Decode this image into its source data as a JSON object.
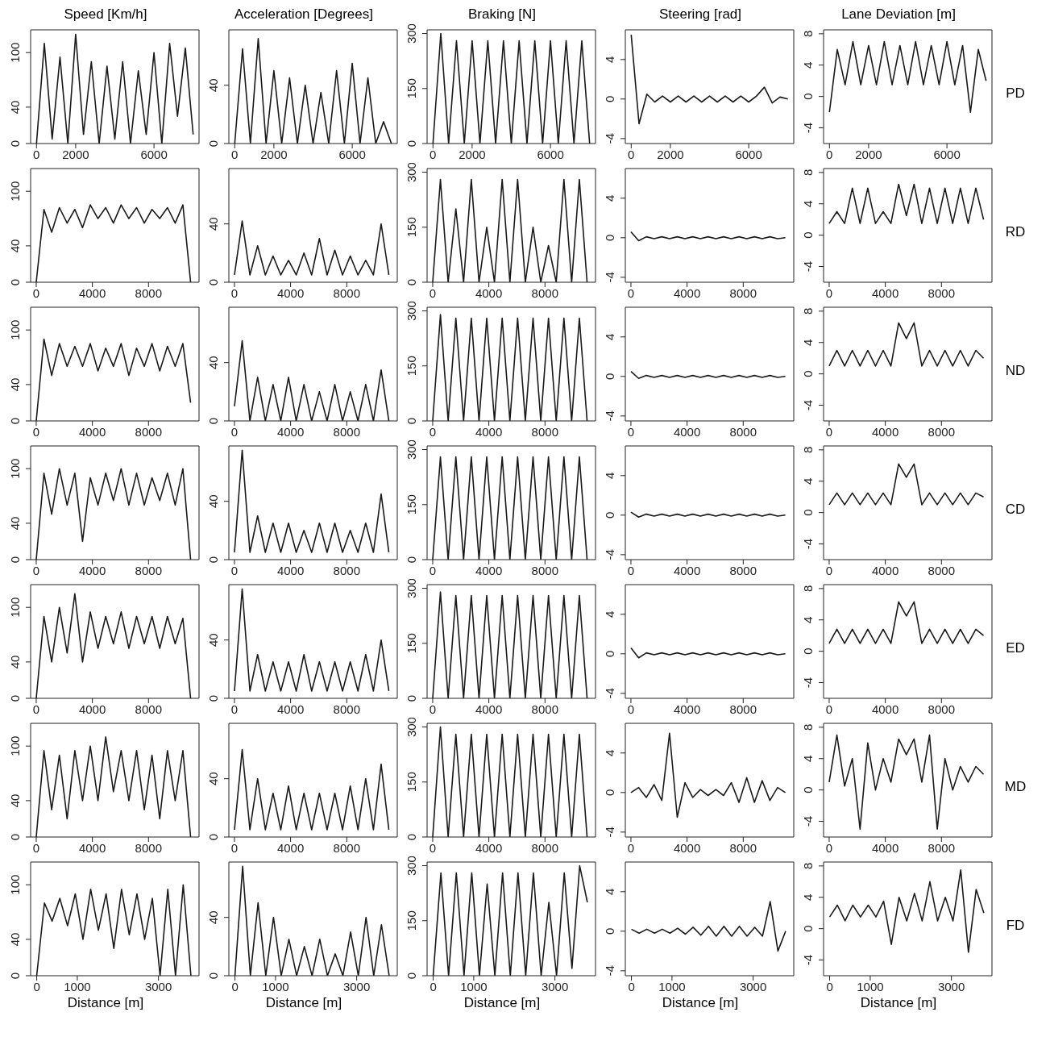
{
  "chart_data": [
    {
      "type": "line",
      "title": "Speed [Km/h]",
      "x": [
        0,
        400,
        800,
        1200,
        1600,
        2000,
        2400,
        2800,
        3200,
        3600,
        4000,
        4400,
        4800,
        5200,
        5600,
        6000,
        6400,
        6800,
        7200,
        7600,
        8000
      ],
      "xlim": [
        -300,
        8300
      ],
      "xticks": [
        0,
        2000,
        6000
      ],
      "ylim": [
        0,
        125
      ],
      "yticks": [
        0,
        40,
        100
      ],
      "series": [
        {
          "color": "#1a1a1a",
          "values": [
            0,
            110,
            5,
            95,
            0,
            120,
            10,
            90,
            0,
            85,
            5,
            90,
            0,
            80,
            10,
            100,
            0,
            110,
            30,
            105,
            10
          ]
        }
      ]
    },
    {
      "type": "line",
      "title": "Acceleration [Degrees]",
      "x": [
        0,
        400,
        800,
        1200,
        1600,
        2000,
        2400,
        2800,
        3200,
        3600,
        4000,
        4400,
        4800,
        5200,
        5600,
        6000,
        6400,
        6800,
        7200,
        7600,
        8000
      ],
      "xlim": [
        -300,
        8300
      ],
      "xticks": [
        0,
        2000,
        6000
      ],
      "ylim": [
        0,
        78
      ],
      "yticks": [
        0,
        40
      ],
      "series": [
        {
          "color": "#1a1a1a",
          "values": [
            0,
            65,
            0,
            72,
            0,
            50,
            0,
            45,
            0,
            40,
            0,
            35,
            0,
            50,
            0,
            55,
            0,
            45,
            0,
            15,
            0
          ]
        }
      ]
    },
    {
      "type": "line",
      "title": "Braking [N]",
      "x": [
        0,
        400,
        800,
        1200,
        1600,
        2000,
        2400,
        2800,
        3200,
        3600,
        4000,
        4400,
        4800,
        5200,
        5600,
        6000,
        6400,
        6800,
        7200,
        7600,
        8000
      ],
      "xlim": [
        -300,
        8300
      ],
      "xticks": [
        0,
        2000,
        6000
      ],
      "ylim": [
        0,
        310
      ],
      "yticks": [
        0,
        150,
        300
      ],
      "series": [
        {
          "color": "#1a1a1a",
          "values": [
            0,
            300,
            0,
            280,
            0,
            280,
            0,
            280,
            0,
            280,
            0,
            280,
            0,
            280,
            0,
            280,
            0,
            280,
            0,
            280,
            0
          ]
        }
      ]
    },
    {
      "type": "line",
      "title": "Steering [rad]",
      "x": [
        0,
        400,
        800,
        1200,
        1600,
        2000,
        2400,
        2800,
        3200,
        3600,
        4000,
        4400,
        4800,
        5200,
        5600,
        6000,
        6400,
        6800,
        7200,
        7600,
        8000
      ],
      "xlim": [
        -300,
        8300
      ],
      "xticks": [
        0,
        2000,
        6000
      ],
      "ylim": [
        -4.5,
        7
      ],
      "yticks": [
        -4,
        0,
        4
      ],
      "series": [
        {
          "color": "#1a1a1a",
          "values": [
            6.5,
            -2.5,
            0.5,
            -0.3,
            0.3,
            -0.3,
            0.3,
            -0.3,
            0.3,
            -0.3,
            0.3,
            -0.3,
            0.3,
            -0.3,
            0.3,
            -0.3,
            0.3,
            1.2,
            -0.4,
            0.2,
            0
          ]
        }
      ]
    },
    {
      "type": "line",
      "title": "Lane Deviation [m]",
      "y2label": "PD",
      "x": [
        0,
        400,
        800,
        1200,
        1600,
        2000,
        2400,
        2800,
        3200,
        3600,
        4000,
        4400,
        4800,
        5200,
        5600,
        6000,
        6400,
        6800,
        7200,
        7600,
        8000
      ],
      "xlim": [
        -300,
        8300
      ],
      "xticks": [
        0,
        2000,
        6000
      ],
      "ylim": [
        -6,
        8.5
      ],
      "yticks": [
        -4,
        0,
        4,
        8
      ],
      "series": [
        {
          "color": "#1a1a1a",
          "values": [
            -2,
            6,
            1.5,
            7,
            1.5,
            6.5,
            1.5,
            7,
            1.5,
            6.5,
            1.5,
            7,
            1.5,
            6.5,
            1.5,
            7,
            1.5,
            6.5,
            -2,
            6,
            2
          ]
        }
      ]
    },
    {
      "type": "line",
      "x": [
        0,
        550,
        1100,
        1650,
        2200,
        2750,
        3300,
        3850,
        4400,
        4950,
        5500,
        6050,
        6600,
        7150,
        7700,
        8250,
        8800,
        9350,
        9900,
        10450,
        11000
      ],
      "xlim": [
        -400,
        11600
      ],
      "xticks": [
        0,
        4000,
        8000
      ],
      "ylim": [
        0,
        125
      ],
      "yticks": [
        0,
        40,
        100
      ],
      "series": [
        {
          "color": "#1a1a1a",
          "values": [
            0,
            80,
            55,
            82,
            65,
            80,
            60,
            85,
            70,
            82,
            65,
            85,
            70,
            82,
            65,
            80,
            70,
            82,
            65,
            85,
            0
          ]
        }
      ]
    },
    {
      "type": "line",
      "x": [
        0,
        550,
        1100,
        1650,
        2200,
        2750,
        3300,
        3850,
        4400,
        4950,
        5500,
        6050,
        6600,
        7150,
        7700,
        8250,
        8800,
        9350,
        9900,
        10450,
        11000
      ],
      "xlim": [
        -400,
        11600
      ],
      "xticks": [
        0,
        4000,
        8000
      ],
      "ylim": [
        0,
        78
      ],
      "yticks": [
        0,
        40
      ],
      "series": [
        {
          "color": "#1a1a1a",
          "values": [
            5,
            42,
            5,
            25,
            5,
            18,
            5,
            15,
            5,
            20,
            5,
            30,
            5,
            22,
            5,
            18,
            5,
            15,
            5,
            40,
            5
          ]
        }
      ]
    },
    {
      "type": "line",
      "x": [
        0,
        550,
        1100,
        1650,
        2200,
        2750,
        3300,
        3850,
        4400,
        4950,
        5500,
        6050,
        6600,
        7150,
        7700,
        8250,
        8800,
        9350,
        9900,
        10450,
        11000
      ],
      "xlim": [
        -400,
        11600
      ],
      "xticks": [
        0,
        4000,
        8000
      ],
      "ylim": [
        0,
        310
      ],
      "yticks": [
        0,
        150,
        300
      ],
      "series": [
        {
          "color": "#1a1a1a",
          "values": [
            0,
            280,
            0,
            200,
            0,
            280,
            0,
            150,
            0,
            280,
            0,
            280,
            0,
            150,
            0,
            100,
            0,
            280,
            0,
            280,
            0
          ]
        }
      ]
    },
    {
      "type": "line",
      "x": [
        0,
        550,
        1100,
        1650,
        2200,
        2750,
        3300,
        3850,
        4400,
        4950,
        5500,
        6050,
        6600,
        7150,
        7700,
        8250,
        8800,
        9350,
        9900,
        10450,
        11000
      ],
      "xlim": [
        -400,
        11600
      ],
      "xticks": [
        0,
        4000,
        8000
      ],
      "ylim": [
        -4.5,
        7
      ],
      "yticks": [
        -4,
        0,
        4
      ],
      "series": [
        {
          "color": "#1a1a1a",
          "values": [
            0.6,
            -0.3,
            0.1,
            -0.1,
            0.1,
            -0.1,
            0.1,
            -0.1,
            0.1,
            -0.1,
            0.1,
            -0.1,
            0.1,
            -0.1,
            0.1,
            -0.1,
            0.1,
            -0.1,
            0.1,
            -0.1,
            0
          ]
        }
      ]
    },
    {
      "type": "line",
      "y2label": "RD",
      "x": [
        0,
        550,
        1100,
        1650,
        2200,
        2750,
        3300,
        3850,
        4400,
        4950,
        5500,
        6050,
        6600,
        7150,
        7700,
        8250,
        8800,
        9350,
        9900,
        10450,
        11000
      ],
      "xlim": [
        -400,
        11600
      ],
      "xticks": [
        0,
        4000,
        8000
      ],
      "ylim": [
        -6,
        8.5
      ],
      "yticks": [
        -4,
        0,
        4,
        8
      ],
      "series": [
        {
          "color": "#1a1a1a",
          "values": [
            1.5,
            3,
            1.5,
            6,
            1.5,
            6,
            1.5,
            3,
            1.5,
            6.5,
            2.5,
            6.5,
            1.5,
            6,
            1.5,
            6,
            1.5,
            6,
            1.5,
            6,
            2
          ]
        }
      ]
    },
    {
      "type": "line",
      "x": [
        0,
        550,
        1100,
        1650,
        2200,
        2750,
        3300,
        3850,
        4400,
        4950,
        5500,
        6050,
        6600,
        7150,
        7700,
        8250,
        8800,
        9350,
        9900,
        10450,
        11000
      ],
      "xlim": [
        -400,
        11600
      ],
      "xticks": [
        0,
        4000,
        8000
      ],
      "ylim": [
        0,
        125
      ],
      "yticks": [
        0,
        40,
        100
      ],
      "series": [
        {
          "color": "#1a1a1a",
          "values": [
            0,
            90,
            50,
            85,
            60,
            82,
            60,
            85,
            55,
            80,
            60,
            85,
            50,
            80,
            60,
            85,
            55,
            82,
            60,
            85,
            20
          ]
        }
      ]
    },
    {
      "type": "line",
      "x": [
        0,
        550,
        1100,
        1650,
        2200,
        2750,
        3300,
        3850,
        4400,
        4950,
        5500,
        6050,
        6600,
        7150,
        7700,
        8250,
        8800,
        9350,
        9900,
        10450,
        11000
      ],
      "xlim": [
        -400,
        11600
      ],
      "xticks": [
        0,
        4000,
        8000
      ],
      "ylim": [
        0,
        78
      ],
      "yticks": [
        0,
        40
      ],
      "series": [
        {
          "color": "#1a1a1a",
          "values": [
            10,
            55,
            0,
            30,
            0,
            25,
            0,
            30,
            0,
            25,
            0,
            20,
            0,
            25,
            0,
            20,
            0,
            25,
            0,
            35,
            0
          ]
        }
      ]
    },
    {
      "type": "line",
      "x": [
        0,
        550,
        1100,
        1650,
        2200,
        2750,
        3300,
        3850,
        4400,
        4950,
        5500,
        6050,
        6600,
        7150,
        7700,
        8250,
        8800,
        9350,
        9900,
        10450,
        11000
      ],
      "xlim": [
        -400,
        11600
      ],
      "xticks": [
        0,
        4000,
        8000
      ],
      "ylim": [
        0,
        310
      ],
      "yticks": [
        0,
        150,
        300
      ],
      "series": [
        {
          "color": "#1a1a1a",
          "values": [
            0,
            290,
            0,
            280,
            0,
            280,
            0,
            280,
            0,
            280,
            0,
            280,
            0,
            280,
            0,
            280,
            0,
            280,
            0,
            280,
            0
          ]
        }
      ]
    },
    {
      "type": "line",
      "x": [
        0,
        550,
        1100,
        1650,
        2200,
        2750,
        3300,
        3850,
        4400,
        4950,
        5500,
        6050,
        6600,
        7150,
        7700,
        8250,
        8800,
        9350,
        9900,
        10450,
        11000
      ],
      "xlim": [
        -400,
        11600
      ],
      "xticks": [
        0,
        4000,
        8000
      ],
      "ylim": [
        -4.5,
        7
      ],
      "yticks": [
        -4,
        0,
        4
      ],
      "series": [
        {
          "color": "#1a1a1a",
          "values": [
            0.5,
            -0.2,
            0.1,
            -0.1,
            0.1,
            -0.1,
            0.1,
            -0.1,
            0.1,
            -0.1,
            0.1,
            -0.1,
            0.1,
            -0.1,
            0.1,
            -0.1,
            0.1,
            -0.1,
            0.1,
            -0.1,
            0
          ]
        }
      ]
    },
    {
      "type": "line",
      "y2label": "ND",
      "x": [
        0,
        550,
        1100,
        1650,
        2200,
        2750,
        3300,
        3850,
        4400,
        4950,
        5500,
        6050,
        6600,
        7150,
        7700,
        8250,
        8800,
        9350,
        9900,
        10450,
        11000
      ],
      "xlim": [
        -400,
        11600
      ],
      "xticks": [
        0,
        4000,
        8000
      ],
      "ylim": [
        -6,
        8.5
      ],
      "yticks": [
        -4,
        0,
        4,
        8
      ],
      "series": [
        {
          "color": "#1a1a1a",
          "values": [
            1,
            3,
            1,
            3,
            1,
            3,
            1,
            3,
            1,
            6.5,
            4.5,
            6.5,
            1,
            3,
            1,
            3,
            1,
            3,
            1,
            3,
            2
          ]
        }
      ]
    },
    {
      "type": "line",
      "x": [
        0,
        550,
        1100,
        1650,
        2200,
        2750,
        3300,
        3850,
        4400,
        4950,
        5500,
        6050,
        6600,
        7150,
        7700,
        8250,
        8800,
        9350,
        9900,
        10450,
        11000
      ],
      "xlim": [
        -400,
        11600
      ],
      "xticks": [
        0,
        4000,
        8000
      ],
      "ylim": [
        0,
        125
      ],
      "yticks": [
        0,
        40,
        100
      ],
      "series": [
        {
          "color": "#1a1a1a",
          "values": [
            0,
            95,
            50,
            100,
            60,
            95,
            20,
            90,
            60,
            95,
            65,
            100,
            60,
            95,
            60,
            90,
            65,
            95,
            60,
            100,
            0
          ]
        }
      ]
    },
    {
      "type": "line",
      "x": [
        0,
        550,
        1100,
        1650,
        2200,
        2750,
        3300,
        3850,
        4400,
        4950,
        5500,
        6050,
        6600,
        7150,
        7700,
        8250,
        8800,
        9350,
        9900,
        10450,
        11000
      ],
      "xlim": [
        -400,
        11600
      ],
      "xticks": [
        0,
        4000,
        8000
      ],
      "ylim": [
        0,
        78
      ],
      "yticks": [
        0,
        40
      ],
      "series": [
        {
          "color": "#1a1a1a",
          "values": [
            5,
            75,
            5,
            30,
            5,
            25,
            5,
            25,
            5,
            20,
            5,
            25,
            5,
            25,
            5,
            20,
            5,
            25,
            5,
            45,
            5
          ]
        }
      ]
    },
    {
      "type": "line",
      "x": [
        0,
        550,
        1100,
        1650,
        2200,
        2750,
        3300,
        3850,
        4400,
        4950,
        5500,
        6050,
        6600,
        7150,
        7700,
        8250,
        8800,
        9350,
        9900,
        10450,
        11000
      ],
      "xlim": [
        -400,
        11600
      ],
      "xticks": [
        0,
        4000,
        8000
      ],
      "ylim": [
        0,
        310
      ],
      "yticks": [
        0,
        150,
        300
      ],
      "series": [
        {
          "color": "#1a1a1a",
          "values": [
            0,
            280,
            0,
            280,
            0,
            280,
            0,
            280,
            0,
            280,
            0,
            280,
            0,
            280,
            0,
            280,
            0,
            280,
            0,
            280,
            0
          ]
        }
      ]
    },
    {
      "type": "line",
      "x": [
        0,
        550,
        1100,
        1650,
        2200,
        2750,
        3300,
        3850,
        4400,
        4950,
        5500,
        6050,
        6600,
        7150,
        7700,
        8250,
        8800,
        9350,
        9900,
        10450,
        11000
      ],
      "xlim": [
        -400,
        11600
      ],
      "xticks": [
        0,
        4000,
        8000
      ],
      "ylim": [
        -4.5,
        7
      ],
      "yticks": [
        -4,
        0,
        4
      ],
      "series": [
        {
          "color": "#1a1a1a",
          "values": [
            0.3,
            -0.2,
            0.1,
            -0.1,
            0.1,
            -0.1,
            0.1,
            -0.1,
            0.1,
            -0.1,
            0.1,
            -0.1,
            0.1,
            -0.1,
            0.1,
            -0.1,
            0.1,
            -0.1,
            0.1,
            -0.1,
            0
          ]
        }
      ]
    },
    {
      "type": "line",
      "y2label": "CD",
      "x": [
        0,
        550,
        1100,
        1650,
        2200,
        2750,
        3300,
        3850,
        4400,
        4950,
        5500,
        6050,
        6600,
        7150,
        7700,
        8250,
        8800,
        9350,
        9900,
        10450,
        11000
      ],
      "xlim": [
        -400,
        11600
      ],
      "xticks": [
        0,
        4000,
        8000
      ],
      "ylim": [
        -6,
        8.5
      ],
      "yticks": [
        -4,
        0,
        4,
        8
      ],
      "series": [
        {
          "color": "#1a1a1a",
          "values": [
            1,
            2.5,
            1,
            2.5,
            1,
            2.5,
            1,
            2.5,
            1,
            6.2,
            4.5,
            6.2,
            1,
            2.5,
            1,
            2.5,
            1,
            2.5,
            1,
            2.5,
            2
          ]
        }
      ]
    },
    {
      "type": "line",
      "x": [
        0,
        550,
        1100,
        1650,
        2200,
        2750,
        3300,
        3850,
        4400,
        4950,
        5500,
        6050,
        6600,
        7150,
        7700,
        8250,
        8800,
        9350,
        9900,
        10450,
        11000
      ],
      "xlim": [
        -400,
        11600
      ],
      "xticks": [
        0,
        4000,
        8000
      ],
      "ylim": [
        0,
        125
      ],
      "yticks": [
        0,
        40,
        100
      ],
      "series": [
        {
          "color": "#1a1a1a",
          "values": [
            0,
            90,
            40,
            100,
            50,
            115,
            40,
            95,
            55,
            90,
            60,
            95,
            55,
            90,
            60,
            90,
            55,
            90,
            60,
            88,
            0
          ]
        }
      ]
    },
    {
      "type": "line",
      "x": [
        0,
        550,
        1100,
        1650,
        2200,
        2750,
        3300,
        3850,
        4400,
        4950,
        5500,
        6050,
        6600,
        7150,
        7700,
        8250,
        8800,
        9350,
        9900,
        10450,
        11000
      ],
      "xlim": [
        -400,
        11600
      ],
      "xticks": [
        0,
        4000,
        8000
      ],
      "ylim": [
        0,
        78
      ],
      "yticks": [
        0,
        40
      ],
      "series": [
        {
          "color": "#1a1a1a",
          "values": [
            5,
            75,
            5,
            30,
            5,
            25,
            5,
            25,
            5,
            30,
            5,
            25,
            5,
            25,
            5,
            25,
            5,
            30,
            5,
            40,
            5
          ]
        }
      ]
    },
    {
      "type": "line",
      "x": [
        0,
        550,
        1100,
        1650,
        2200,
        2750,
        3300,
        3850,
        4400,
        4950,
        5500,
        6050,
        6600,
        7150,
        7700,
        8250,
        8800,
        9350,
        9900,
        10450,
        11000
      ],
      "xlim": [
        -400,
        11600
      ],
      "xticks": [
        0,
        4000,
        8000
      ],
      "ylim": [
        0,
        310
      ],
      "yticks": [
        0,
        150,
        300
      ],
      "series": [
        {
          "color": "#1a1a1a",
          "values": [
            0,
            290,
            0,
            280,
            0,
            280,
            0,
            280,
            0,
            280,
            0,
            280,
            0,
            280,
            0,
            280,
            0,
            280,
            0,
            280,
            0
          ]
        }
      ]
    },
    {
      "type": "line",
      "x": [
        0,
        550,
        1100,
        1650,
        2200,
        2750,
        3300,
        3850,
        4400,
        4950,
        5500,
        6050,
        6600,
        7150,
        7700,
        8250,
        8800,
        9350,
        9900,
        10450,
        11000
      ],
      "xlim": [
        -400,
        11600
      ],
      "xticks": [
        0,
        4000,
        8000
      ],
      "ylim": [
        -4.5,
        7
      ],
      "yticks": [
        -4,
        0,
        4
      ],
      "series": [
        {
          "color": "#1a1a1a",
          "values": [
            0.6,
            -0.4,
            0.1,
            -0.1,
            0.1,
            -0.1,
            0.1,
            -0.1,
            0.1,
            -0.1,
            0.1,
            -0.1,
            0.1,
            -0.1,
            0.1,
            -0.1,
            0.1,
            -0.1,
            0.1,
            -0.1,
            0
          ]
        }
      ]
    },
    {
      "type": "line",
      "y2label": "ED",
      "x": [
        0,
        550,
        1100,
        1650,
        2200,
        2750,
        3300,
        3850,
        4400,
        4950,
        5500,
        6050,
        6600,
        7150,
        7700,
        8250,
        8800,
        9350,
        9900,
        10450,
        11000
      ],
      "xlim": [
        -400,
        11600
      ],
      "xticks": [
        0,
        4000,
        8000
      ],
      "ylim": [
        -6,
        8.5
      ],
      "yticks": [
        -4,
        0,
        4,
        8
      ],
      "series": [
        {
          "color": "#1a1a1a",
          "values": [
            1,
            2.8,
            1,
            2.8,
            1,
            2.8,
            1,
            2.8,
            1,
            6.3,
            4.5,
            6.3,
            1,
            2.8,
            1,
            2.8,
            1,
            2.8,
            1,
            2.8,
            2
          ]
        }
      ]
    },
    {
      "type": "line",
      "x": [
        0,
        550,
        1100,
        1650,
        2200,
        2750,
        3300,
        3850,
        4400,
        4950,
        5500,
        6050,
        6600,
        7150,
        7700,
        8250,
        8800,
        9350,
        9900,
        10450,
        11000
      ],
      "xlim": [
        -400,
        11600
      ],
      "xticks": [
        0,
        4000,
        8000
      ],
      "ylim": [
        0,
        125
      ],
      "yticks": [
        0,
        40,
        100
      ],
      "series": [
        {
          "color": "#1a1a1a",
          "values": [
            0,
            95,
            30,
            90,
            20,
            95,
            40,
            100,
            40,
            110,
            50,
            95,
            40,
            95,
            30,
            90,
            20,
            95,
            40,
            95,
            0
          ]
        }
      ]
    },
    {
      "type": "line",
      "x": [
        0,
        550,
        1100,
        1650,
        2200,
        2750,
        3300,
        3850,
        4400,
        4950,
        5500,
        6050,
        6600,
        7150,
        7700,
        8250,
        8800,
        9350,
        9900,
        10450,
        11000
      ],
      "xlim": [
        -400,
        11600
      ],
      "xticks": [
        0,
        4000,
        8000
      ],
      "ylim": [
        0,
        78
      ],
      "yticks": [
        0,
        40
      ],
      "series": [
        {
          "color": "#1a1a1a",
          "values": [
            5,
            60,
            5,
            40,
            5,
            30,
            5,
            35,
            5,
            30,
            5,
            30,
            5,
            30,
            5,
            35,
            5,
            40,
            5,
            50,
            5
          ]
        }
      ]
    },
    {
      "type": "line",
      "x": [
        0,
        550,
        1100,
        1650,
        2200,
        2750,
        3300,
        3850,
        4400,
        4950,
        5500,
        6050,
        6600,
        7150,
        7700,
        8250,
        8800,
        9350,
        9900,
        10450,
        11000
      ],
      "xlim": [
        -400,
        11600
      ],
      "xticks": [
        0,
        4000,
        8000
      ],
      "ylim": [
        0,
        310
      ],
      "yticks": [
        0,
        150,
        300
      ],
      "series": [
        {
          "color": "#1a1a1a",
          "values": [
            0,
            300,
            0,
            280,
            0,
            280,
            0,
            280,
            0,
            280,
            0,
            280,
            0,
            280,
            0,
            280,
            0,
            280,
            0,
            280,
            0
          ]
        }
      ]
    },
    {
      "type": "line",
      "x": [
        0,
        550,
        1100,
        1650,
        2200,
        2750,
        3300,
        3850,
        4400,
        4950,
        5500,
        6050,
        6600,
        7150,
        7700,
        8250,
        8800,
        9350,
        9900,
        10450,
        11000
      ],
      "xlim": [
        -400,
        11600
      ],
      "xticks": [
        0,
        4000,
        8000
      ],
      "ylim": [
        -4.5,
        7
      ],
      "yticks": [
        -4,
        0,
        4
      ],
      "series": [
        {
          "color": "#1a1a1a",
          "values": [
            0,
            0.5,
            -0.5,
            0.8,
            -0.8,
            6,
            -2.5,
            1,
            -0.5,
            0.3,
            -0.3,
            0.3,
            -0.3,
            1,
            -1,
            1.5,
            -1,
            1.2,
            -0.8,
            0.5,
            0
          ]
        }
      ]
    },
    {
      "type": "line",
      "y2label": "MD",
      "x": [
        0,
        550,
        1100,
        1650,
        2200,
        2750,
        3300,
        3850,
        4400,
        4950,
        5500,
        6050,
        6600,
        7150,
        7700,
        8250,
        8800,
        9350,
        9900,
        10450,
        11000
      ],
      "xlim": [
        -400,
        11600
      ],
      "xticks": [
        0,
        4000,
        8000
      ],
      "ylim": [
        -6,
        8.5
      ],
      "yticks": [
        -4,
        0,
        4,
        8
      ],
      "series": [
        {
          "color": "#1a1a1a",
          "values": [
            1,
            7,
            0.5,
            4,
            -5,
            6,
            0,
            4,
            1,
            6.5,
            4.5,
            6.5,
            1,
            7,
            -5,
            4,
            0,
            3,
            1,
            3,
            2
          ]
        }
      ]
    },
    {
      "type": "line",
      "xlabel": "Distance [m]",
      "x": [
        0,
        190,
        380,
        570,
        760,
        950,
        1140,
        1330,
        1520,
        1710,
        1900,
        2090,
        2280,
        2470,
        2660,
        2850,
        3040,
        3230,
        3420,
        3610,
        3800
      ],
      "xlim": [
        -150,
        4000
      ],
      "xticks": [
        0,
        1000,
        3000
      ],
      "ylim": [
        0,
        125
      ],
      "yticks": [
        0,
        40,
        100
      ],
      "series": [
        {
          "color": "#1a1a1a",
          "values": [
            0,
            80,
            60,
            85,
            55,
            90,
            40,
            95,
            50,
            90,
            30,
            95,
            45,
            90,
            40,
            85,
            0,
            95,
            0,
            100,
            0
          ]
        }
      ]
    },
    {
      "type": "line",
      "xlabel": "Distance [m]",
      "x": [
        0,
        190,
        380,
        570,
        760,
        950,
        1140,
        1330,
        1520,
        1710,
        1900,
        2090,
        2280,
        2470,
        2660,
        2850,
        3040,
        3230,
        3420,
        3610,
        3800
      ],
      "xlim": [
        -150,
        4000
      ],
      "xticks": [
        0,
        1000,
        3000
      ],
      "ylim": [
        0,
        78
      ],
      "yticks": [
        0,
        40
      ],
      "series": [
        {
          "color": "#1a1a1a",
          "values": [
            0,
            75,
            0,
            50,
            0,
            40,
            0,
            25,
            0,
            20,
            0,
            25,
            0,
            15,
            0,
            30,
            0,
            40,
            0,
            35,
            0
          ]
        }
      ]
    },
    {
      "type": "line",
      "xlabel": "Distance [m]",
      "x": [
        0,
        190,
        380,
        570,
        760,
        950,
        1140,
        1330,
        1520,
        1710,
        1900,
        2090,
        2280,
        2470,
        2660,
        2850,
        3040,
        3230,
        3420,
        3610,
        3800
      ],
      "xlim": [
        -150,
        4000
      ],
      "xticks": [
        0,
        1000,
        3000
      ],
      "ylim": [
        0,
        310
      ],
      "yticks": [
        0,
        150,
        300
      ],
      "series": [
        {
          "color": "#1a1a1a",
          "values": [
            0,
            280,
            0,
            280,
            0,
            280,
            0,
            250,
            0,
            280,
            0,
            280,
            0,
            280,
            0,
            200,
            0,
            280,
            20,
            300,
            200
          ]
        }
      ]
    },
    {
      "type": "line",
      "xlabel": "Distance [m]",
      "x": [
        0,
        190,
        380,
        570,
        760,
        950,
        1140,
        1330,
        1520,
        1710,
        1900,
        2090,
        2280,
        2470,
        2660,
        2850,
        3040,
        3230,
        3420,
        3610,
        3800
      ],
      "xlim": [
        -150,
        4000
      ],
      "xticks": [
        0,
        1000,
        3000
      ],
      "ylim": [
        -4.5,
        7
      ],
      "yticks": [
        -4,
        0,
        4
      ],
      "series": [
        {
          "color": "#1a1a1a",
          "values": [
            0.2,
            -0.2,
            0.2,
            -0.2,
            0.2,
            -0.2,
            0.3,
            -0.3,
            0.4,
            -0.4,
            0.5,
            -0.5,
            0.5,
            -0.5,
            0.5,
            -0.5,
            0.4,
            -0.5,
            3,
            -2,
            0
          ]
        }
      ]
    },
    {
      "type": "line",
      "xlabel": "Distance [m]",
      "y2label": "FD",
      "x": [
        0,
        190,
        380,
        570,
        760,
        950,
        1140,
        1330,
        1520,
        1710,
        1900,
        2090,
        2280,
        2470,
        2660,
        2850,
        3040,
        3230,
        3420,
        3610,
        3800
      ],
      "xlim": [
        -150,
        4000
      ],
      "xticks": [
        0,
        1000,
        3000
      ],
      "ylim": [
        -6,
        8.5
      ],
      "yticks": [
        -4,
        0,
        4,
        8
      ],
      "series": [
        {
          "color": "#1a1a1a",
          "values": [
            1.5,
            3,
            1,
            3,
            1.5,
            3,
            1.5,
            3.5,
            -2,
            4,
            1,
            4.5,
            1,
            6,
            1,
            4,
            1,
            7.5,
            -3,
            5,
            2
          ]
        }
      ]
    }
  ]
}
